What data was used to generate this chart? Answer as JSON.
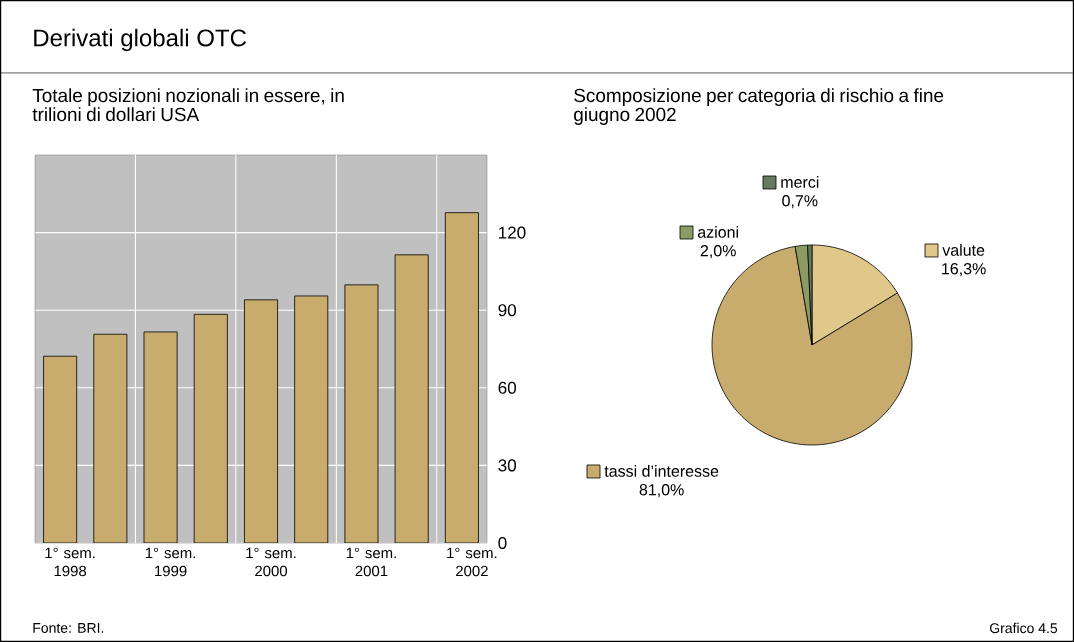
{
  "chart_data": [
    {
      "type": "bar",
      "title": "Totale posizioni nozionali in essere, in trilioni di dollari USA",
      "annotations": [
        "Derivati globali OTC",
        "Fonte: BRI.",
        "Grafico 4.5"
      ],
      "categories": [
        "1° sem. 1998",
        null,
        "1° sem. 1999",
        null,
        "1° sem. 2000",
        null,
        "1° sem. 2001",
        null,
        "1° sem. 2002"
      ],
      "values": [
        72.2,
        80.7,
        81.6,
        88.4,
        94.0,
        95.5,
        99.8,
        111.4,
        127.7
      ],
      "color": "#c8ac6e",
      "ylim": [
        0,
        150
      ],
      "yticks": [
        0,
        30,
        60,
        90,
        120
      ],
      "grid": true
    },
    {
      "type": "pie",
      "title": "Scomposizione per categoria di rischio a fine giugno 2002",
      "categories": [
        "valute",
        "tassi d’interesse",
        "azioni",
        "merci"
      ],
      "values": [
        16.3,
        81.0,
        2.0,
        0.7
      ],
      "value_labels": [
        "16,3%",
        "81,0%",
        "2,0%",
        "0,7%"
      ],
      "colors": [
        "#e0c88a",
        "#c8ac6e",
        "#8c9a64",
        "#667a60"
      ],
      "legend": "top left"
    }
  ]
}
